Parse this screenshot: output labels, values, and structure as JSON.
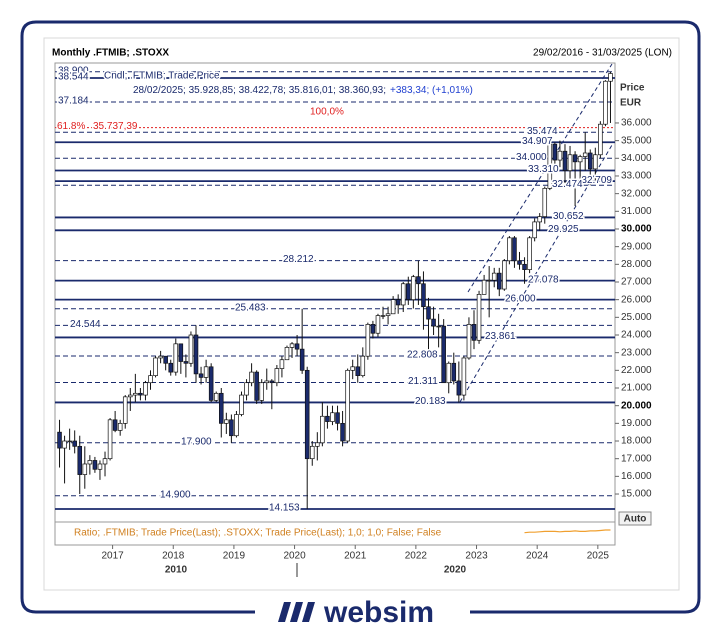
{
  "chart_data": {
    "type": "candlestick",
    "title": "Monthly .FTMIB; .STOXX",
    "date_range": "29/02/2016 - 31/03/2025 (LON)",
    "legend_name": "Cndl; .FTMIB; Trade Price",
    "legend_values": "28/02/2025; 35.928,85; 38.422,78; 35.816,01; 38.360,93;",
    "legend_change": "+383,34; (+1,01%)",
    "y_axis_title": "Price",
    "y_axis_unit": "EUR",
    "scale_mode": "Auto",
    "x_secondary_labels": [
      "2010",
      "2020"
    ],
    "categories": [
      null,
      null,
      null,
      null,
      null,
      null,
      null,
      null,
      null,
      null,
      null,
      "2017",
      null,
      null,
      null,
      null,
      null,
      null,
      null,
      null,
      null,
      null,
      null,
      "2018",
      null,
      null,
      null,
      null,
      null,
      null,
      null,
      null,
      null,
      null,
      null,
      "2019",
      null,
      null,
      null,
      null,
      null,
      null,
      null,
      null,
      null,
      null,
      null,
      "2020",
      null,
      null,
      null,
      null,
      null,
      null,
      null,
      null,
      null,
      null,
      null,
      "2021",
      null,
      null,
      null,
      null,
      null,
      null,
      null,
      null,
      null,
      null,
      null,
      "2022",
      null,
      null,
      null,
      null,
      null,
      null,
      null,
      null,
      null,
      null,
      null,
      "2023",
      null,
      null,
      null,
      null,
      null,
      null,
      null,
      null,
      null,
      null,
      null,
      "2024",
      null,
      null,
      null,
      null,
      null,
      null,
      null,
      null,
      null,
      null,
      null,
      "2025",
      null,
      null
    ],
    "open": [
      18500,
      17600,
      18000,
      18000,
      17700,
      16100,
      16700,
      16900,
      16400,
      16700,
      17000,
      19200,
      18600,
      19000,
      20500,
      20600,
      20700,
      20600,
      21300,
      21700,
      22700,
      22800,
      22400,
      21900,
      23500,
      22500,
      22400,
      24000,
      21800,
      21600,
      22200,
      20300,
      20700,
      19000,
      19200,
      18300,
      19500,
      20600,
      21300,
      21900,
      20300,
      21300,
      21400,
      21300,
      22100,
      22600,
      23300,
      23500,
      23200,
      22000,
      17000,
      17700,
      17900,
      19400,
      19100,
      19600,
      19000,
      18000,
      22000,
      22200,
      21700,
      22800,
      24600,
      24100,
      25100,
      25100,
      25200,
      26000,
      25700,
      26900,
      26000,
      27300,
      26900,
      25600,
      24900,
      24500,
      24500,
      21300,
      22400,
      21400,
      20600,
      22700,
      24600,
      23700,
      26300,
      27100,
      27100,
      27500,
      26600,
      28200,
      29500,
      28200,
      28000,
      27700,
      29500,
      30400,
      30700,
      32300,
      34800,
      33900,
      34400,
      33300,
      34200,
      33800,
      34100,
      34300,
      33400,
      34200,
      35929,
      38361
    ],
    "high": [
      19200,
      18300,
      18700,
      18600,
      18300,
      17700,
      17200,
      17100,
      16900,
      17400,
      19300,
      19700,
      19200,
      20600,
      21000,
      21800,
      21000,
      21400,
      22000,
      22800,
      23100,
      22800,
      22600,
      23800,
      23500,
      22900,
      24200,
      24544,
      22200,
      22600,
      22400,
      20800,
      21000,
      19600,
      19500,
      19700,
      20800,
      21500,
      22400,
      22000,
      21500,
      22100,
      21500,
      22300,
      22800,
      23400,
      23600,
      24000,
      25483,
      22200,
      18000,
      18500,
      20200,
      20000,
      20000,
      20000,
      19700,
      22100,
      22600,
      22900,
      23300,
      24700,
      24800,
      25200,
      25600,
      25600,
      26200,
      26300,
      27000,
      27300,
      27400,
      28212,
      27600,
      26100,
      25600,
      25200,
      24900,
      22500,
      23000,
      22500,
      22800,
      25000,
      25400,
      26500,
      27400,
      27900,
      27800,
      27800,
      28300,
      29600,
      29600,
      28700,
      28400,
      29600,
      30600,
      30900,
      32400,
      34800,
      34900,
      35000,
      34800,
      34700,
      34400,
      34200,
      35474,
      34500,
      34600,
      36100,
      38423,
      38900
    ],
    "low": [
      16500,
      15600,
      17500,
      17300,
      15000,
      15300,
      16100,
      16200,
      15800,
      16000,
      16900,
      18500,
      18300,
      18700,
      19700,
      20200,
      20300,
      20300,
      20900,
      21600,
      22400,
      22000,
      21700,
      21700,
      21800,
      21600,
      22200,
      21300,
      21200,
      21300,
      20200,
      20200,
      18200,
      18400,
      17900,
      18200,
      19400,
      20300,
      21100,
      20100,
      20100,
      20900,
      19800,
      21100,
      21600,
      22600,
      22700,
      22800,
      21800,
      14153,
      16600,
      16900,
      17700,
      18700,
      18900,
      18600,
      17700,
      17900,
      21500,
      21300,
      21600,
      22600,
      23800,
      23900,
      24900,
      24600,
      25200,
      25200,
      25300,
      25700,
      25500,
      25700,
      24300,
      22800,
      24000,
      23300,
      21300,
      20700,
      21200,
      20183,
      20300,
      22600,
      23200,
      23500,
      26300,
      25000,
      26700,
      26200,
      26500,
      28000,
      27800,
      27700,
      26900,
      27500,
      29300,
      29900,
      30300,
      32200,
      33300,
      33500,
      32600,
      32500,
      31300,
      32700,
      33300,
      32474,
      32709,
      34000,
      35816,
      36000
    ],
    "close": [
      17600,
      18000,
      18000,
      17700,
      16100,
      16700,
      16900,
      16400,
      16700,
      17000,
      19200,
      18600,
      19000,
      20500,
      20600,
      20700,
      20600,
      21300,
      21700,
      22700,
      22800,
      22400,
      21900,
      23500,
      22500,
      22400,
      24000,
      21800,
      21600,
      22200,
      20300,
      20700,
      19000,
      19200,
      18300,
      19500,
      20600,
      21300,
      21900,
      20300,
      21300,
      21400,
      21300,
      22100,
      22600,
      23300,
      23500,
      23200,
      22000,
      17000,
      17700,
      17900,
      19400,
      19100,
      19600,
      19000,
      18000,
      22000,
      22200,
      21700,
      22800,
      24600,
      24100,
      25100,
      25100,
      25200,
      26000,
      25700,
      26900,
      26000,
      27300,
      26900,
      25600,
      24900,
      24500,
      24500,
      21300,
      22400,
      21400,
      20600,
      22700,
      24600,
      23700,
      26300,
      27100,
      27100,
      27500,
      26600,
      28200,
      29500,
      28200,
      28000,
      27700,
      29500,
      30400,
      30700,
      32300,
      34800,
      33900,
      34400,
      33300,
      34200,
      33800,
      34100,
      34300,
      33400,
      34200,
      35929,
      38361,
      38800
    ],
    "up_color": "#ffffff",
    "down_color": "#1a2a6c",
    "ylim": [
      13530,
      39450
    ],
    "yticks": [
      {
        "value": 15000,
        "label": "15.000"
      },
      {
        "value": 16000,
        "label": "16.000"
      },
      {
        "value": 17000,
        "label": "17.000"
      },
      {
        "value": 18000,
        "label": "18.000"
      },
      {
        "value": 19000,
        "label": "19.000"
      },
      {
        "value": 20000,
        "label": "20.000"
      },
      {
        "value": 21000,
        "label": "21.000"
      },
      {
        "value": 22000,
        "label": "22.000"
      },
      {
        "value": 23000,
        "label": "23.000"
      },
      {
        "value": 24000,
        "label": "24.000"
      },
      {
        "value": 25000,
        "label": "25.000"
      },
      {
        "value": 26000,
        "label": "26.000"
      },
      {
        "value": 27000,
        "label": "27.000"
      },
      {
        "value": 28000,
        "label": "28.000"
      },
      {
        "value": 29000,
        "label": "29.000"
      },
      {
        "value": 30000,
        "label": "30.000"
      },
      {
        "value": 31000,
        "label": "31.000"
      },
      {
        "value": 32000,
        "label": "32.000"
      },
      {
        "value": 33000,
        "label": "33.000"
      },
      {
        "value": 34000,
        "label": "34.000"
      },
      {
        "value": 35000,
        "label": "35.000"
      },
      {
        "value": 36000,
        "label": "36.000"
      }
    ],
    "levels": [
      {
        "value": 38900,
        "label": "38.900",
        "style": "dashed"
      },
      {
        "value": 38544,
        "label": "38.544",
        "style": "solid"
      },
      {
        "value": 37184,
        "label": "37.184",
        "style": "dashed"
      },
      {
        "value": 35474,
        "label": "35.474",
        "style": "dashed"
      },
      {
        "value": 34907,
        "label": "34.907",
        "style": "solid"
      },
      {
        "value": 34000,
        "label": "34.000",
        "style": "dashed"
      },
      {
        "value": 33310,
        "label": "33.310",
        "style": "solid"
      },
      {
        "value": 32709,
        "label": "32.709",
        "style": "solid"
      },
      {
        "value": 32474,
        "label": "32.474",
        "style": "dashed"
      },
      {
        "value": 30652,
        "label": "30.652",
        "style": "solid"
      },
      {
        "value": 29925,
        "label": "29.925",
        "style": "solid"
      },
      {
        "value": 28212,
        "label": "28.212",
        "style": "dashed"
      },
      {
        "value": 27078,
        "label": "27.078",
        "style": "solid"
      },
      {
        "value": 26000,
        "label": "26.000",
        "style": "solid"
      },
      {
        "value": 25483,
        "label": "25.483",
        "style": "dashed"
      },
      {
        "value": 24544,
        "label": "24.544",
        "style": "dashed"
      },
      {
        "value": 23861,
        "label": "23.861",
        "style": "solid"
      },
      {
        "value": 22808,
        "label": "22.808",
        "style": "dashed"
      },
      {
        "value": 21311,
        "label": "21.311",
        "style": "dashed"
      },
      {
        "value": 20183,
        "label": "20.183",
        "style": "solid"
      },
      {
        "value": 17900,
        "label": "17.900",
        "style": "dashed"
      },
      {
        "value": 14900,
        "label": "14.900",
        "style": "dashed"
      },
      {
        "value": 14153,
        "label": "14.153",
        "style": "solid"
      }
    ],
    "fibonacci": {
      "ratio_label": "61.8%",
      "value": 35737.39,
      "value_label": "35.737,39",
      "top_label": "100,0%",
      "color": "#e02020"
    },
    "ratio": {
      "name": "Ratio; .FTMIB; Trade Price(Last); .STOXX; Trade Price(Last);  1,0; 1,0; False; False",
      "color": "#f0a030",
      "ylim": [
        0.04,
        0.09
      ],
      "values": [
        null,
        null,
        null,
        null,
        null,
        null,
        null,
        null,
        null,
        null,
        null,
        null,
        null,
        null,
        null,
        null,
        null,
        null,
        null,
        null,
        null,
        null,
        null,
        null,
        null,
        null,
        null,
        null,
        null,
        null,
        null,
        null,
        null,
        null,
        null,
        null,
        null,
        null,
        null,
        null,
        null,
        null,
        null,
        null,
        null,
        null,
        null,
        null,
        null,
        null,
        null,
        null,
        null,
        null,
        null,
        null,
        null,
        null,
        null,
        null,
        null,
        null,
        null,
        null,
        null,
        null,
        null,
        null,
        null,
        null,
        null,
        null,
        null,
        null,
        null,
        null,
        null,
        null,
        null,
        null,
        null,
        null,
        null,
        null,
        null,
        null,
        null,
        null,
        null,
        null,
        null,
        null,
        0.068,
        0.069,
        0.069,
        0.07,
        0.071,
        0.071,
        0.071,
        0.07,
        0.071,
        0.071,
        0.072,
        0.071,
        0.071,
        0.072,
        0.072,
        0.073,
        0.074,
        0.074
      ]
    }
  },
  "brand": "websim"
}
